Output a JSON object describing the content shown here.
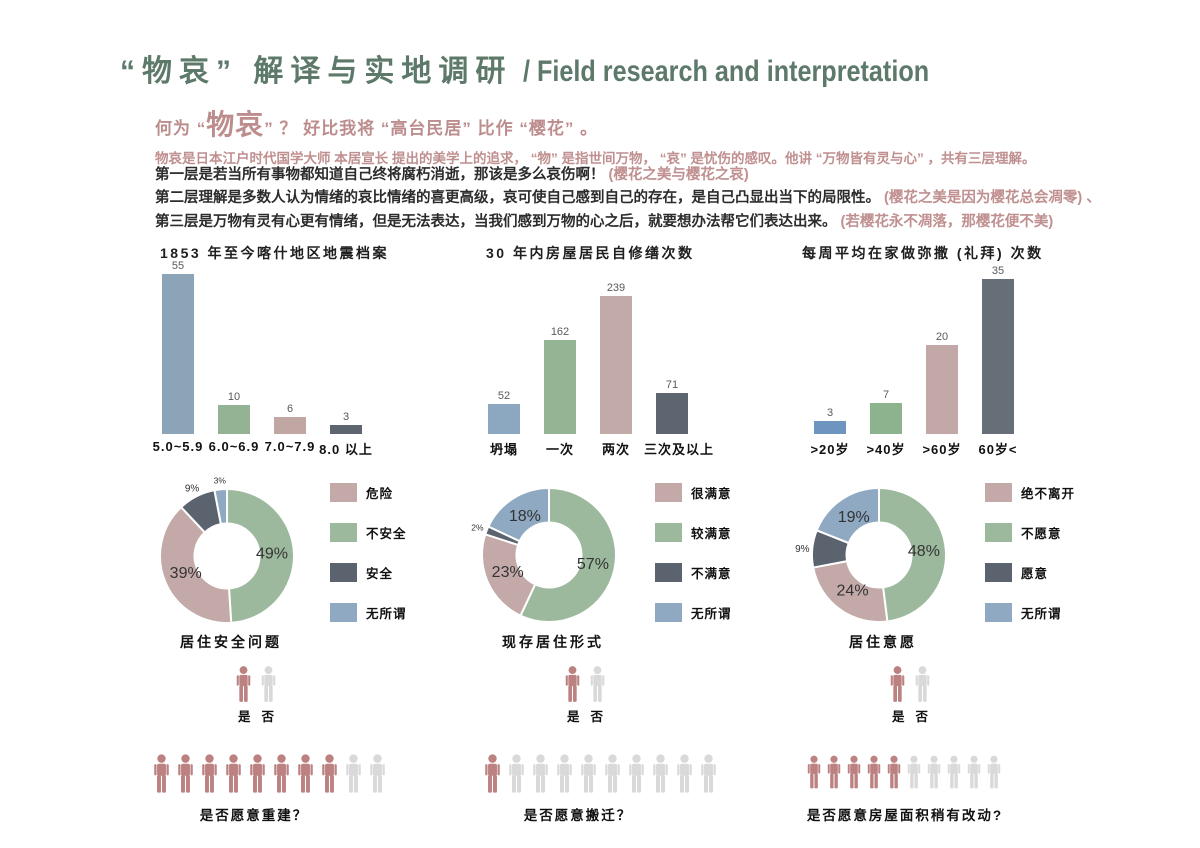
{
  "page": {
    "title_zh": "“物哀” 解译与实地调研",
    "title_en": "/ Field research and interpretation"
  },
  "intro": {
    "q_pre": "何为 “",
    "q_big": "物哀",
    "q_post": "” ？  好比我将 “高台民居” 比作 “樱花” 。",
    "line1": "物哀是日本江户时代国学大师 本居宣长 提出的美学上的追求， “物” 是指世间万物， “哀” 是忧伤的感叹。他讲 “万物皆有灵与心” ，共有三层理解。",
    "layers": [
      {
        "main": "第一层是若当所有事物都知道自己终将腐朽消逝，那该是多么哀伤啊！",
        "note": " (樱花之美与樱花之哀)"
      },
      {
        "main": "第二层理解是多数人认为情绪的哀比情绪的喜更高级，哀可使自己感到自己的存在，是自己凸显出当下的局限性。",
        "note": " (樱花之美是因为樱花总会凋零) 、"
      },
      {
        "main": "第三层是万物有灵有心更有情绪，但是无法表达，当我们感到万物的心之后，就要想办法帮它们表达出来。",
        "note": " (若樱花永不凋落，那樱花便不美)"
      }
    ]
  },
  "chart_data": [
    {
      "type": "bar",
      "title": "1853 年至今喀什地区地震档案",
      "categories": [
        "5.0~5.9",
        "6.0~6.9",
        "7.0~7.9",
        "8.0 以上"
      ],
      "values": [
        55,
        10,
        6,
        3
      ],
      "colors": [
        "#8ca4b8",
        "#94b394",
        "#c0a7a4",
        "#5d6570"
      ],
      "ylim": [
        0,
        60
      ],
      "grid": false,
      "legend_position": "none"
    },
    {
      "type": "bar",
      "title": "30 年内房屋居民自修缮次数",
      "categories": [
        "坍塌",
        "一次",
        "两次",
        "三次及以上"
      ],
      "values": [
        52,
        162,
        239,
        71
      ],
      "colors": [
        "#8ca8c0",
        "#94b594",
        "#c2aaa8",
        "#5d6570"
      ],
      "ylim": [
        0,
        250
      ],
      "grid": false,
      "legend_position": "none"
    },
    {
      "type": "bar",
      "title": "每周平均在家做弥撒 (礼拜) 次数",
      "categories": [
        ">20岁",
        ">40岁",
        ">60岁",
        "60岁<"
      ],
      "values": [
        3,
        7,
        20,
        35
      ],
      "colors": [
        "#6d95bf",
        "#8db38e",
        "#c2a8a6",
        "#666e78"
      ],
      "ylim": [
        0,
        38
      ],
      "grid": false,
      "legend_position": "none"
    },
    {
      "type": "donut",
      "title": "居住安全问题",
      "segments": [
        {
          "label": "不安全",
          "pct": 49,
          "color": "#9cb99d"
        },
        {
          "label": "危险",
          "pct": 39,
          "color": "#c3aaa8"
        },
        {
          "label": "安全",
          "pct": 9,
          "color": "#5a636e"
        },
        {
          "label": "无所谓",
          "pct": 3,
          "color": "#8fa9c2"
        }
      ],
      "legend": [
        {
          "label": "危险",
          "color": "#c3aaa8"
        },
        {
          "label": "不安全",
          "color": "#9cb99d"
        },
        {
          "label": "安全",
          "color": "#5a636e"
        },
        {
          "label": "无所谓",
          "color": "#8fa9c2"
        }
      ],
      "legend_position": "right"
    },
    {
      "type": "donut",
      "title": "现存居住形式",
      "segments": [
        {
          "label": "较满意",
          "pct": 57,
          "color": "#9cb99d"
        },
        {
          "label": "很满意",
          "pct": 23,
          "color": "#c3aaa8"
        },
        {
          "label": "不满意",
          "pct": 2,
          "color": "#5a636e"
        },
        {
          "label": "无所谓",
          "pct": 18,
          "color": "#8fa9c2"
        }
      ],
      "legend": [
        {
          "label": "很满意",
          "color": "#c3aaa8"
        },
        {
          "label": "较满意",
          "color": "#9cb99d"
        },
        {
          "label": "不满意",
          "color": "#5a636e"
        },
        {
          "label": "无所谓",
          "color": "#8fa9c2"
        }
      ],
      "legend_position": "right"
    },
    {
      "type": "donut",
      "title": "居住意愿",
      "segments": [
        {
          "label": "不愿意",
          "pct": 48,
          "color": "#9cb99d"
        },
        {
          "label": "绝不离开",
          "pct": 24,
          "color": "#c3aaa8"
        },
        {
          "label": "愿意",
          "pct": 9,
          "color": "#5a636e"
        },
        {
          "label": "无所谓",
          "pct": 19,
          "color": "#8fa9c2"
        }
      ],
      "legend": [
        {
          "label": "绝不离开",
          "color": "#c3aaa8"
        },
        {
          "label": "不愿意",
          "color": "#9cb99d"
        },
        {
          "label": "愿意",
          "color": "#5a636e"
        },
        {
          "label": "无所谓",
          "color": "#8fa9c2"
        }
      ],
      "legend_position": "right"
    }
  ],
  "pictograms": {
    "yes_label": "是",
    "no_label": "否",
    "person_red": "#bc8181",
    "person_gray": "#d9d9d9",
    "rows": [
      {
        "red_count": 8,
        "gray_count": 2,
        "label": "是否愿意重建？"
      },
      {
        "red_count": 1,
        "gray_count": 9,
        "label": "是否愿意搬迁？"
      },
      {
        "red_count": 5,
        "gray_count": 5,
        "label": "是否愿意房屋面积稍有改动?"
      }
    ]
  },
  "colors": {
    "title_green": "#5d7969",
    "text_pink": "#c08f8f",
    "text_dark": "#2c2c2c"
  }
}
